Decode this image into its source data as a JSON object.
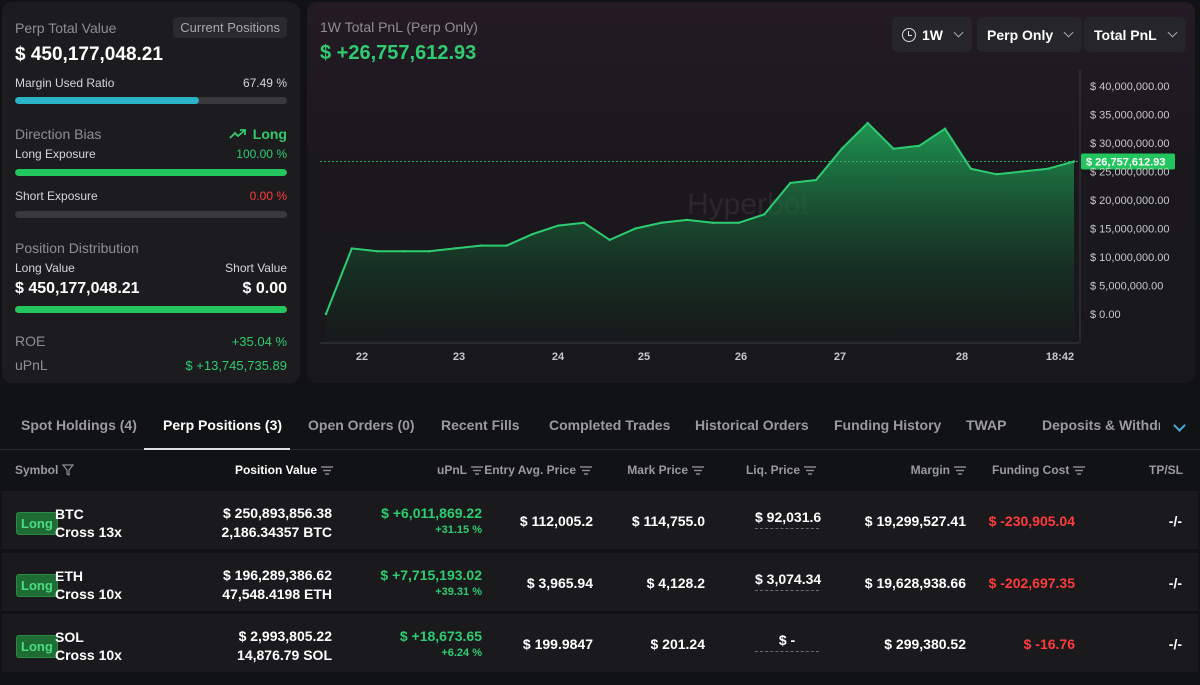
{
  "summary": {
    "perp_total_value_label": "Perp Total Value",
    "current_positions_button": "Current Positions",
    "perp_total_value": "$ 450,177,048.21",
    "margin_used_label": "Margin Used Ratio",
    "margin_used_value": "67.49 %",
    "margin_used_ratio": 0.6749,
    "direction_bias_label": "Direction Bias",
    "direction_bias_value": "Long",
    "long_exposure_label": "Long Exposure",
    "long_exposure_value": "100.00 %",
    "long_exposure_ratio": 1.0,
    "short_exposure_label": "Short Exposure",
    "short_exposure_value": "0.00 %",
    "short_exposure_ratio": 0.0,
    "position_distribution_label": "Position Distribution",
    "long_value_label": "Long Value",
    "short_value_label": "Short Value",
    "long_value": "$ 450,177,048.21",
    "short_value": "$ 0.00",
    "long_share": 1.0,
    "roe_label": "ROE",
    "roe_value": "+35.04 %",
    "upnl_label": "uPnL",
    "upnl_value": "$ +13,745,735.89"
  },
  "chart_header": {
    "title": "1W Total PnL (Perp Only)",
    "pnl": "$ +26,757,612.93",
    "range_dropdown": "1W",
    "scope_dropdown": "Perp Only",
    "metric_dropdown": "Total PnL"
  },
  "chart_data": {
    "type": "area",
    "x": [
      "21 20:00",
      "22 00:00",
      "22 06:00",
      "22 12:00",
      "22 18:00",
      "23 00:00",
      "23 06:00",
      "23 12:00",
      "23 18:00",
      "24 00:00",
      "24 06:00",
      "24 12:00",
      "24 18:00",
      "25 00:00",
      "25 06:00",
      "25 12:00",
      "25 18:00",
      "26 00:00",
      "26 06:00",
      "26 12:00",
      "26 18:00",
      "27 00:00",
      "27 06:00",
      "27 12:00",
      "27 18:00",
      "28 00:00",
      "28 06:00",
      "28 12:00",
      "28 18:00",
      "28 18:42"
    ],
    "values": [
      0,
      11500000,
      11000000,
      11000000,
      11000000,
      11500000,
      12000000,
      12000000,
      14000000,
      15500000,
      16000000,
      13000000,
      15000000,
      16000000,
      16500000,
      16000000,
      16000000,
      17500000,
      23000000,
      23500000,
      29000000,
      33500000,
      29000000,
      29500000,
      32500000,
      25500000,
      24500000,
      25000000,
      25500000,
      26757612.93
    ],
    "current_value_label": "$ 26,757,612.93",
    "y_ticks": [
      "$ 40,000,000.00",
      "$ 35,000,000.00",
      "$ 30,000,000.00",
      "$ 25,000,000.00",
      "$ 20,000,000.00",
      "$ 15,000,000.00",
      "$ 10,000,000.00",
      "$ 5,000,000.00",
      "$ 0.00"
    ],
    "x_ticks": [
      "22",
      "23",
      "24",
      "25",
      "26",
      "27",
      "28",
      "18:42"
    ],
    "ylim": [
      0,
      40000000
    ],
    "watermark": "Hyperbot",
    "colors": {
      "line": "#2ecc71",
      "fill_top": "#1f9d55",
      "fill_bottom": "#0f2a1a"
    }
  },
  "tabs": [
    {
      "label": "Spot Holdings (4)"
    },
    {
      "label": "Perp Positions (3)"
    },
    {
      "label": "Open Orders (0)"
    },
    {
      "label": "Recent Fills"
    },
    {
      "label": "Completed Trades"
    },
    {
      "label": "Historical Orders"
    },
    {
      "label": "Funding History"
    },
    {
      "label": "TWAP"
    },
    {
      "label": "Deposits & Withdrawals"
    }
  ],
  "table": {
    "headers": [
      "Symbol",
      "Position Value",
      "uPnL",
      "Entry Avg. Price",
      "Mark Price",
      "Liq. Price",
      "Margin",
      "Funding Cost",
      "TP/SL"
    ],
    "rows": [
      {
        "side": "Long",
        "symbol": "BTC",
        "leverage": "Cross 13x",
        "position_value": "$ 250,893,856.38",
        "position_size": "2,186.34357 BTC",
        "upnl": "$ +6,011,869.22",
        "upnl_pct": "+31.15 %",
        "entry": "$ 112,005.2",
        "mark": "$ 114,755.0",
        "liq": "$ 92,031.6",
        "margin": "$ 19,299,527.41",
        "funding": "$ -230,905.04",
        "tpsl": "-/-"
      },
      {
        "side": "Long",
        "symbol": "ETH",
        "leverage": "Cross 10x",
        "position_value": "$ 196,289,386.62",
        "position_size": "47,548.4198 ETH",
        "upnl": "$ +7,715,193.02",
        "upnl_pct": "+39.31 %",
        "entry": "$ 3,965.94",
        "mark": "$ 4,128.2",
        "liq": "$ 3,074.34",
        "margin": "$ 19,628,938.66",
        "funding": "$ -202,697.35",
        "tpsl": "-/-"
      },
      {
        "side": "Long",
        "symbol": "SOL",
        "leverage": "Cross 10x",
        "position_value": "$ 2,993,805.22",
        "position_size": "14,876.79 SOL",
        "upnl": "$ +18,673.65",
        "upnl_pct": "+6.24 %",
        "entry": "$ 199.9847",
        "mark": "$ 201.24",
        "liq": "$ -",
        "margin": "$ 299,380.52",
        "funding": "$ -16.76",
        "tpsl": "-/-"
      }
    ]
  }
}
